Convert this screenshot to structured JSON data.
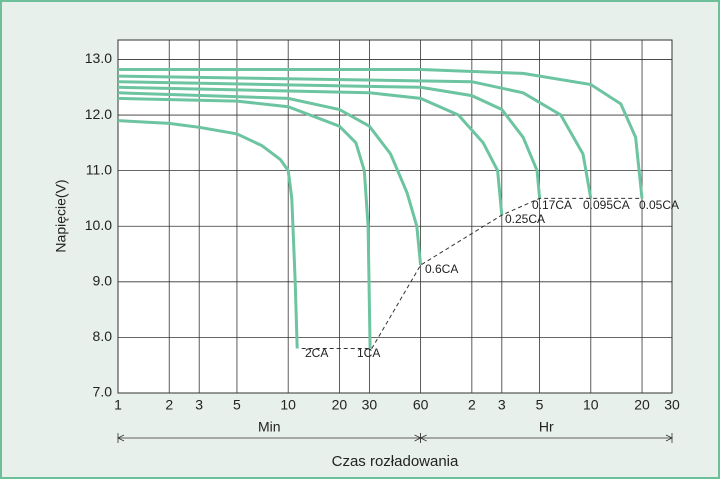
{
  "chart_data": {
    "type": "line",
    "xlabel": "Czas rozładowania",
    "ylabel": "Napięcie(V)",
    "xscale": "log",
    "xlim": [
      1,
      1800
    ],
    "ylim": [
      7,
      13.35
    ],
    "xticks": [
      1,
      2,
      3,
      5,
      10,
      20,
      30,
      60,
      {
        "value": 120,
        "label": "2"
      },
      {
        "value": 180,
        "label": "3"
      },
      {
        "value": 300,
        "label": "5"
      },
      {
        "value": 600,
        "label": "10"
      },
      {
        "value": 1200,
        "label": "20"
      },
      {
        "value": 1800,
        "label": "30"
      }
    ],
    "yticks": [
      {
        "value": 7,
        "label": "7.0"
      },
      {
        "value": 8,
        "label": "8.0"
      },
      {
        "value": 9,
        "label": "9.0"
      },
      {
        "value": 10,
        "label": "10.0"
      },
      {
        "value": 11,
        "label": "11.0"
      },
      {
        "value": 12,
        "label": "12.0"
      },
      {
        "value": 13,
        "label": "13.0"
      }
    ],
    "grid": true,
    "groups": [
      {
        "label": "Min",
        "range": [
          1,
          60
        ]
      },
      {
        "label": "Hr",
        "range": [
          60,
          1800
        ]
      }
    ],
    "series": [
      {
        "name": "2CA",
        "color": "#6cc4a0",
        "x": [
          1,
          2,
          3,
          5,
          7,
          9,
          10,
          10.5,
          11,
          11.3
        ],
        "values": [
          11.9,
          11.85,
          11.78,
          11.66,
          11.45,
          11.2,
          11.0,
          10.5,
          9.0,
          7.8
        ]
      },
      {
        "name": "1CA",
        "color": "#6cc4a0",
        "x": [
          1,
          5,
          10,
          20,
          25,
          28,
          29.5,
          30.3
        ],
        "values": [
          12.3,
          12.25,
          12.15,
          11.8,
          11.5,
          11.0,
          10.0,
          7.8
        ]
      },
      {
        "name": "0.6CA",
        "color": "#6cc4a0",
        "x": [
          1,
          10,
          20,
          30,
          40,
          50,
          57,
          60
        ],
        "values": [
          12.4,
          12.3,
          12.1,
          11.8,
          11.3,
          10.6,
          10.0,
          9.3
        ]
      },
      {
        "name": "0.25CA",
        "color": "#6cc4a0",
        "x": [
          1,
          30,
          60,
          100,
          140,
          170,
          180
        ],
        "values": [
          12.5,
          12.4,
          12.3,
          12.0,
          11.5,
          11.0,
          10.2
        ]
      },
      {
        "name": "0.17CA",
        "color": "#6cc4a0",
        "x": [
          1,
          60,
          120,
          180,
          240,
          290,
          300
        ],
        "values": [
          12.6,
          12.5,
          12.35,
          12.1,
          11.6,
          11.0,
          10.5
        ]
      },
      {
        "name": "0.095CA",
        "color": "#6cc4a0",
        "x": [
          1,
          120,
          240,
          400,
          540,
          600
        ],
        "values": [
          12.7,
          12.6,
          12.4,
          12.0,
          11.3,
          10.5
        ]
      },
      {
        "name": "0.05CA",
        "color": "#6cc4a0",
        "x": [
          1,
          60,
          240,
          600,
          900,
          1100,
          1200
        ],
        "values": [
          12.82,
          12.82,
          12.75,
          12.55,
          12.2,
          11.6,
          10.5
        ]
      },
      {
        "color": "#333333",
        "dashed": true,
        "x": [
          12,
          31,
          60,
          180,
          300,
          1200
        ],
        "values": [
          7.8,
          7.8,
          9.3,
          10.2,
          10.5,
          10.5
        ]
      }
    ]
  }
}
